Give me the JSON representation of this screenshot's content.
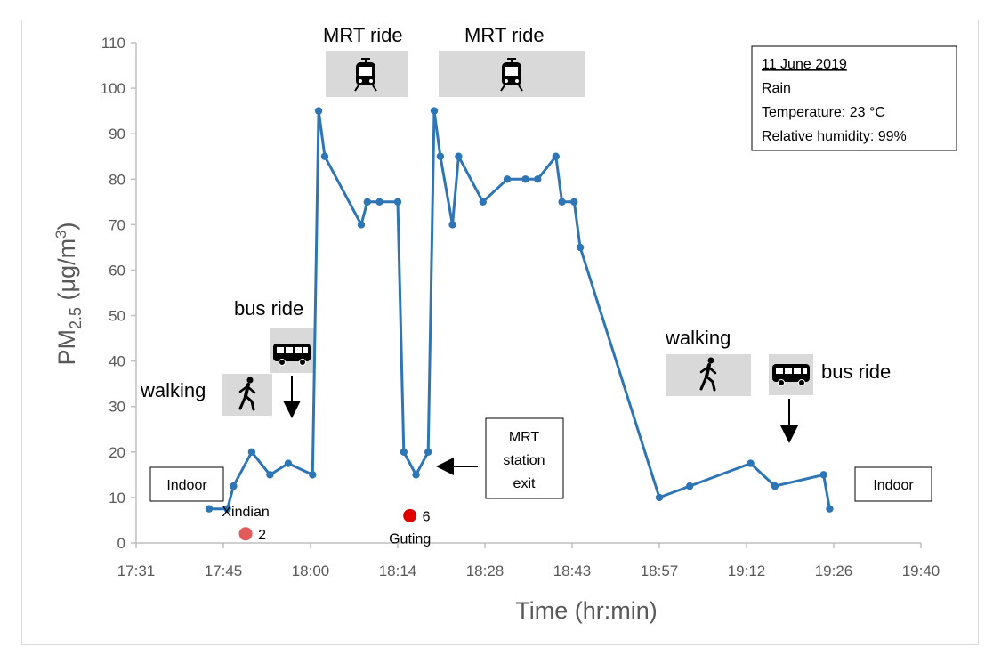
{
  "chart_data": {
    "type": "line",
    "xlabel": "Time (hr:min)",
    "ylabel_main": "PM",
    "ylabel_sub": "2.5",
    "ylabel_unit": " (μg/m",
    "ylabel_sup": "3",
    "ylabel_close": ")",
    "xlim": [
      "17:31",
      "19:40"
    ],
    "ylim": [
      0,
      110
    ],
    "x_ticks": [
      "17:31",
      "17:45",
      "18:00",
      "18:14",
      "18:28",
      "18:43",
      "18:57",
      "19:12",
      "19:26",
      "19:40"
    ],
    "y_ticks": [
      0,
      10,
      20,
      30,
      40,
      50,
      60,
      70,
      80,
      90,
      100,
      110
    ],
    "series": [
      {
        "color": "#2e75b6",
        "x": [
          "17:43",
          "17:46",
          "17:47",
          "17:50",
          "17:53",
          "17:56",
          "18:00",
          "18:01",
          "18:02",
          "18:08",
          "18:09",
          "18:11",
          "18:14",
          "18:15",
          "18:17",
          "18:19",
          "18:20",
          "18:21",
          "18:23",
          "18:24",
          "18:28",
          "18:32",
          "18:35",
          "18:37",
          "18:40",
          "18:41",
          "18:43",
          "18:44",
          "18:57",
          "19:02",
          "19:12",
          "19:16",
          "19:24",
          "19:25"
        ],
        "values": [
          7.5,
          7.5,
          12.5,
          20,
          15,
          17.5,
          15,
          95,
          85,
          70,
          75,
          75,
          75,
          20,
          15,
          20,
          95,
          85,
          70,
          85,
          75,
          80,
          80,
          80,
          85,
          75,
          75,
          65,
          10,
          12.5,
          17.5,
          12.5,
          15,
          7.5
        ]
      }
    ],
    "markers": [
      {
        "x": "17:49",
        "y": 2,
        "color": "#e25b5b",
        "value_label": "2",
        "name_label": "Xindian"
      },
      {
        "x": "18:16",
        "y": 6,
        "color": "#e00000",
        "value_label": "6",
        "name_label": "Guting"
      }
    ],
    "annotations": {
      "indoor_left": "Indoor",
      "indoor_right": "Indoor",
      "walking_1": "walking",
      "bus_ride_1": "bus ride",
      "mrt_ride_1": "MRT ride",
      "mrt_ride_2": "MRT ride",
      "walking_2": "walking",
      "bus_ride_2": "bus ride",
      "mrt_exit_line1": "MRT",
      "mrt_exit_line2": "station",
      "mrt_exit_line3": "exit"
    },
    "info_box": {
      "date": "11 June 2019",
      "weather": "Rain",
      "temperature": "Temperature: 23 °C",
      "humidity": "Relative humidity: 99%"
    },
    "icons": [
      "walking-person-icon",
      "bus-icon",
      "train-icon",
      "train-icon",
      "walking-person-icon",
      "bus-icon"
    ]
  }
}
